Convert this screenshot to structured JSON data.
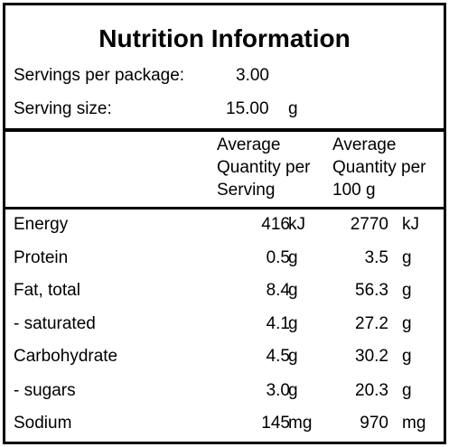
{
  "title": "Nutrition Information",
  "servings": {
    "per_package_label": "Servings per package:",
    "per_package_value": "3.00",
    "size_label": "Serving size:",
    "size_value": "15.00",
    "size_unit": "g"
  },
  "headers": {
    "per_serving": [
      "Average",
      "Quantity per",
      "Serving"
    ],
    "per_100g": [
      "Average",
      "Quantity per",
      "100 g"
    ]
  },
  "rows": [
    {
      "name": "Energy",
      "serving": "416",
      "serving_unit": "kJ",
      "per100": "2770",
      "per100_unit": "kJ"
    },
    {
      "name": "Protein",
      "serving": "0.5",
      "serving_unit": "g",
      "per100": "3.5",
      "per100_unit": "g"
    },
    {
      "name": "Fat, total",
      "serving": "8.4",
      "serving_unit": "g",
      "per100": "56.3",
      "per100_unit": "g"
    },
    {
      "name": "- saturated",
      "serving": "4.1",
      "serving_unit": "g",
      "per100": "27.2",
      "per100_unit": "g"
    },
    {
      "name": "Carbohydrate",
      "serving": "4.5",
      "serving_unit": "g",
      "per100": "30.2",
      "per100_unit": "g"
    },
    {
      "name": "- sugars",
      "serving": "3.0",
      "serving_unit": "g",
      "per100": "20.3",
      "per100_unit": "g"
    },
    {
      "name": "Sodium",
      "serving": "145",
      "serving_unit": "mg",
      "per100": "970",
      "per100_unit": "mg"
    }
  ]
}
